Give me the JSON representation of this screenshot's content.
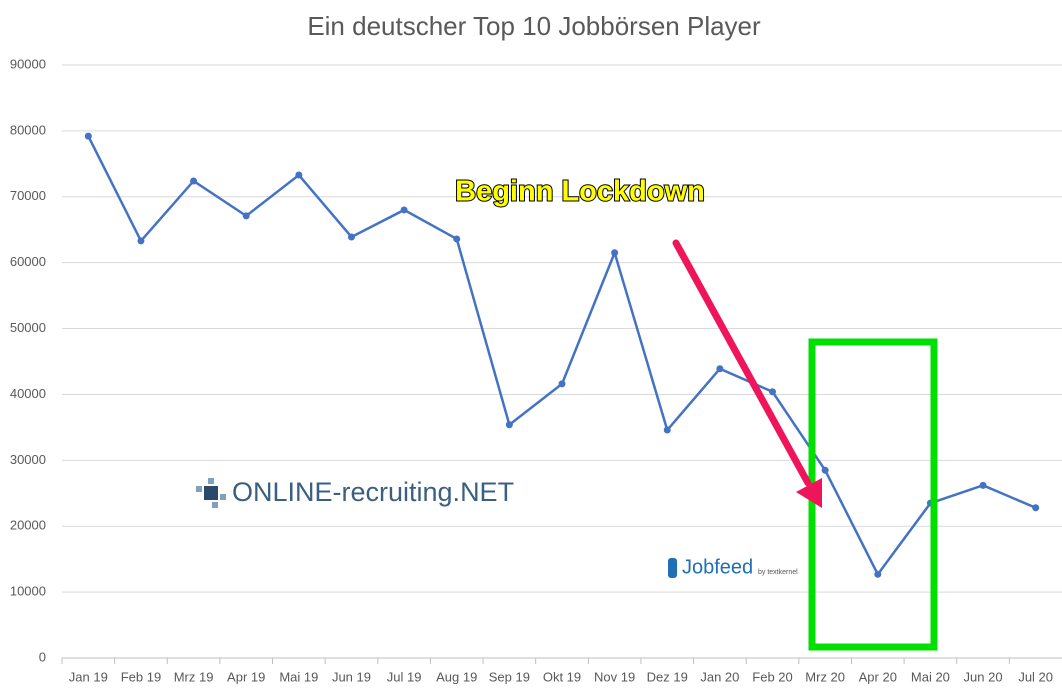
{
  "chart_data": {
    "type": "line",
    "title": "Ein deutscher Top 10 Jobbörsen Player",
    "categories": [
      "Jan 19",
      "Feb 19",
      "Mrz 19",
      "Apr 19",
      "Mai 19",
      "Jun 19",
      "Jul 19",
      "Aug 19",
      "Sep 19",
      "Okt 19",
      "Nov 19",
      "Dez 19",
      "Jan 20",
      "Feb 20",
      "Mrz 20",
      "Apr 20",
      "Mai 20",
      "Jun 20",
      "Jul 20"
    ],
    "series": [
      {
        "color": "#4472c4",
        "values": [
          79200,
          63300,
          72400,
          67100,
          73300,
          63900,
          68000,
          63600,
          35400,
          41600,
          61500,
          34600,
          43900,
          40400,
          28500,
          12700,
          23500,
          26200,
          22800
        ]
      }
    ],
    "ylim": [
      0,
      90000
    ],
    "yticks": [
      0,
      10000,
      20000,
      30000,
      40000,
      50000,
      60000,
      70000,
      80000,
      90000
    ],
    "grid": true,
    "annotations": {
      "lockdown": "Beginn Lockdown",
      "logo": "ONLINE-recruiting.NET",
      "jobfeed": "Jobfeed",
      "jobfeed_sub": "by textkernel"
    }
  }
}
